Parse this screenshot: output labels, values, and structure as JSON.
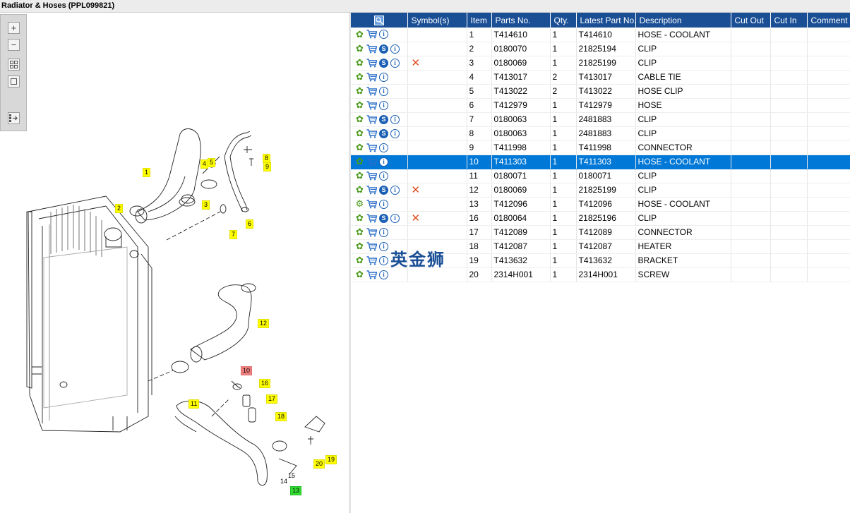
{
  "window": {
    "title": "Radiator & Hoses (PPL099821)"
  },
  "toolbox": {
    "zoom_in_icon": "zoom-in-icon",
    "zoom_out_icon": "zoom-out-icon",
    "fit_icon": "fit-icon",
    "actual_size_icon": "actual-size-icon",
    "export_icon": "export-icon"
  },
  "diagram": {
    "callouts": [
      {
        "label": "1"
      },
      {
        "label": "2"
      },
      {
        "label": "3"
      },
      {
        "label": "4"
      },
      {
        "label": "5"
      },
      {
        "label": "6"
      },
      {
        "label": "7"
      },
      {
        "label": "8"
      },
      {
        "label": "9"
      },
      {
        "label": "10"
      },
      {
        "label": "11"
      },
      {
        "label": "12"
      },
      {
        "label": "13"
      },
      {
        "label": "14"
      },
      {
        "label": "15"
      },
      {
        "label": "16"
      },
      {
        "label": "17"
      },
      {
        "label": "18"
      },
      {
        "label": "19"
      },
      {
        "label": "20"
      }
    ]
  },
  "table": {
    "columns": [
      "",
      "Symbol(s)",
      "Item",
      "Parts No.",
      "Qty.",
      "Latest Part No.",
      "Description",
      "Cut Out",
      "Cut In",
      "Comment"
    ],
    "rows": [
      {
        "item": "1",
        "part": "T414610",
        "qty": "1",
        "latest": "T414610",
        "desc": "HOSE - COOLANT",
        "s": false,
        "x": false
      },
      {
        "item": "2",
        "part": "0180070",
        "qty": "1",
        "latest": "21825194",
        "desc": "CLIP",
        "s": true,
        "x": false
      },
      {
        "item": "3",
        "part": "0180069",
        "qty": "1",
        "latest": "21825199",
        "desc": "CLIP",
        "s": true,
        "x": true
      },
      {
        "item": "4",
        "part": "T413017",
        "qty": "2",
        "latest": "T413017",
        "desc": "CABLE TIE",
        "s": false,
        "x": false
      },
      {
        "item": "5",
        "part": "T413022",
        "qty": "2",
        "latest": "T413022",
        "desc": "HOSE CLIP",
        "s": false,
        "x": false
      },
      {
        "item": "6",
        "part": "T412979",
        "qty": "1",
        "latest": "T412979",
        "desc": "HOSE",
        "s": false,
        "x": false
      },
      {
        "item": "7",
        "part": "0180063",
        "qty": "1",
        "latest": "2481883",
        "desc": "CLIP",
        "s": true,
        "x": false
      },
      {
        "item": "8",
        "part": "0180063",
        "qty": "1",
        "latest": "2481883",
        "desc": "CLIP",
        "s": true,
        "x": false
      },
      {
        "item": "9",
        "part": "T411998",
        "qty": "1",
        "latest": "T411998",
        "desc": "CONNECTOR",
        "s": false,
        "x": false
      },
      {
        "item": "10",
        "part": "T411303",
        "qty": "1",
        "latest": "T411303",
        "desc": "HOSE - COOLANT",
        "s": false,
        "x": false,
        "selected": true
      },
      {
        "item": "11",
        "part": "0180071",
        "qty": "1",
        "latest": "0180071",
        "desc": "CLIP",
        "s": false,
        "x": false
      },
      {
        "item": "12",
        "part": "0180069",
        "qty": "1",
        "latest": "21825199",
        "desc": "CLIP",
        "s": true,
        "x": true
      },
      {
        "item": "13",
        "part": "T412096",
        "qty": "1",
        "latest": "T412096",
        "desc": "HOSE - COOLANT",
        "s": false,
        "x": false,
        "gear_variant": true
      },
      {
        "item": "16",
        "part": "0180064",
        "qty": "1",
        "latest": "21825196",
        "desc": "CLIP",
        "s": true,
        "x": true
      },
      {
        "item": "17",
        "part": "T412089",
        "qty": "1",
        "latest": "T412089",
        "desc": "CONNECTOR",
        "s": false,
        "x": false
      },
      {
        "item": "18",
        "part": "T412087",
        "qty": "1",
        "latest": "T412087",
        "desc": "HEATER",
        "s": false,
        "x": false
      },
      {
        "item": "19",
        "part": "T413632",
        "qty": "1",
        "latest": "T413632",
        "desc": "BRACKET",
        "s": false,
        "x": false
      },
      {
        "item": "20",
        "part": "2314H001",
        "qty": "1",
        "latest": "2314H001",
        "desc": "SCREW",
        "s": false,
        "x": false
      }
    ]
  },
  "watermark": "英金狮",
  "colors": {
    "header_bg": "#1a4f96",
    "selected_row": "#0078d7",
    "callout": "#ffff00",
    "callout_selected": "#f08080",
    "callout_green": "#33dd33",
    "gear": "#4a9a1a",
    "cut_mark": "#e04a1a"
  }
}
